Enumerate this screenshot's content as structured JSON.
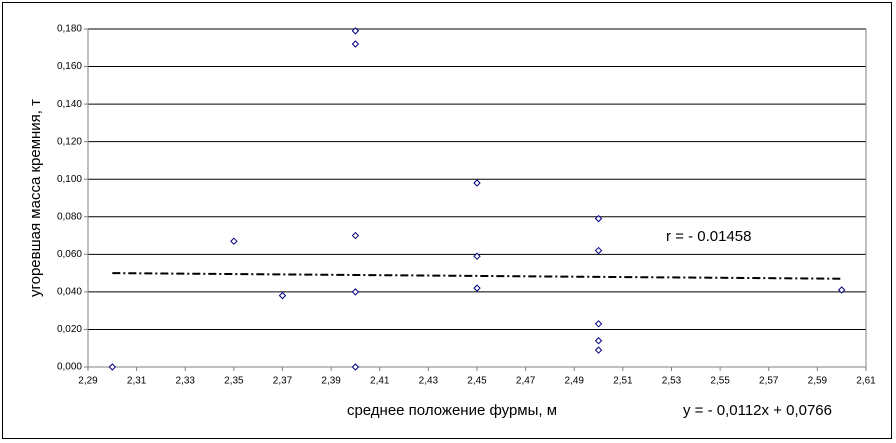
{
  "chart_data": {
    "type": "scatter",
    "x_label": "среднее положение фурмы, м",
    "y_label": "угоревшая масса кремния, т",
    "annotations": [
      "r = - 0.01458",
      "y = - 0,0112x + 0,0766"
    ],
    "xlim": [
      2.29,
      2.61
    ],
    "ylim": [
      0,
      0.18
    ],
    "xticks": [
      {
        "value": 2.29,
        "label": "2,29"
      },
      {
        "value": 2.31,
        "label": "2,31"
      },
      {
        "value": 2.33,
        "label": "2,33"
      },
      {
        "value": 2.35,
        "label": "2,35"
      },
      {
        "value": 2.37,
        "label": "2,37"
      },
      {
        "value": 2.39,
        "label": "2,39"
      },
      {
        "value": 2.41,
        "label": "2,41"
      },
      {
        "value": 2.43,
        "label": "2,43"
      },
      {
        "value": 2.45,
        "label": "2,45"
      },
      {
        "value": 2.47,
        "label": "2,47"
      },
      {
        "value": 2.49,
        "label": "2,49"
      },
      {
        "value": 2.51,
        "label": "2,51"
      },
      {
        "value": 2.53,
        "label": "2,53"
      },
      {
        "value": 2.55,
        "label": "2,55"
      },
      {
        "value": 2.57,
        "label": "2,57"
      },
      {
        "value": 2.59,
        "label": "2,59"
      },
      {
        "value": 2.61,
        "label": "2,61"
      }
    ],
    "yticks": [
      {
        "value": 0,
        "label": "0,000"
      },
      {
        "value": 0.02,
        "label": "0,020"
      },
      {
        "value": 0.04,
        "label": "0,040"
      },
      {
        "value": 0.06,
        "label": "0,060"
      },
      {
        "value": 0.08,
        "label": "0,080"
      },
      {
        "value": 0.1,
        "label": "0,100"
      },
      {
        "value": 0.12,
        "label": "0,120"
      },
      {
        "value": 0.14,
        "label": "0,140"
      },
      {
        "value": 0.16,
        "label": "0,160"
      },
      {
        "value": 0.18,
        "label": "0,180"
      }
    ],
    "grid": true,
    "color": "#000080",
    "x": [
      2.3,
      2.35,
      2.37,
      2.4,
      2.4,
      2.4,
      2.4,
      2.4,
      2.45,
      2.45,
      2.45,
      2.5,
      2.5,
      2.5,
      2.5,
      2.5,
      2.6
    ],
    "values": [
      0.0,
      0.067,
      0.038,
      0.179,
      0.172,
      0.07,
      0.04,
      0.0,
      0.098,
      0.059,
      0.042,
      0.079,
      0.062,
      0.023,
      0.014,
      0.009,
      0.041
    ],
    "trendline": {
      "x": [
        2.3,
        2.6
      ],
      "values": [
        0.05,
        0.047
      ]
    }
  }
}
